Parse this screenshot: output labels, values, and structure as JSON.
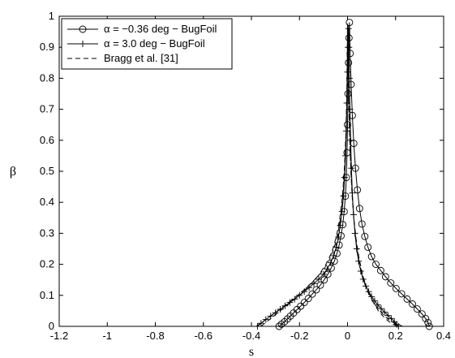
{
  "chart_data": {
    "type": "line",
    "xlabel": "s",
    "ylabel": "β",
    "xlim": [
      -1.2,
      0.4
    ],
    "ylim": [
      0,
      1
    ],
    "xticks": [
      "-1.2",
      "-1",
      "-0.8",
      "-0.6",
      "-0.4",
      "-0.2",
      "0",
      "0.2",
      "0.4"
    ],
    "yticks": [
      "0",
      "0.1",
      "0.2",
      "0.3",
      "0.4",
      "0.5",
      "0.6",
      "0.7",
      "0.8",
      "0.9",
      "1"
    ],
    "grid": false,
    "legend": "top-left",
    "series": [
      {
        "name": "α = −0.36 deg − BugFoil",
        "marker": "circle",
        "line": "solid",
        "color": "#000000",
        "x": [
          -0.285,
          -0.275,
          -0.262,
          -0.25,
          -0.238,
          -0.225,
          -0.21,
          -0.195,
          -0.18,
          -0.163,
          -0.147,
          -0.13,
          -0.113,
          -0.097,
          -0.082,
          -0.068,
          -0.055,
          -0.044,
          -0.035,
          -0.027,
          -0.02,
          -0.014,
          -0.009,
          -0.005,
          -0.002,
          0.0,
          0.002,
          0.004,
          0.006,
          0.008,
          0.011,
          0.015,
          0.02,
          0.026,
          0.033,
          0.041,
          0.05,
          0.06,
          0.072,
          0.085,
          0.1,
          0.118,
          0.138,
          0.158,
          0.18,
          0.202,
          0.225,
          0.248,
          0.27,
          0.29,
          0.31,
          0.325,
          0.335,
          0.34
        ],
        "y": [
          0.0,
          0.007,
          0.015,
          0.024,
          0.033,
          0.043,
          0.054,
          0.065,
          0.077,
          0.09,
          0.104,
          0.118,
          0.133,
          0.15,
          0.168,
          0.188,
          0.21,
          0.235,
          0.262,
          0.292,
          0.328,
          0.37,
          0.42,
          0.48,
          0.56,
          0.65,
          0.75,
          0.85,
          0.93,
          0.98,
          0.88,
          0.78,
          0.68,
          0.59,
          0.51,
          0.44,
          0.38,
          0.33,
          0.29,
          0.255,
          0.225,
          0.2,
          0.18,
          0.16,
          0.14,
          0.122,
          0.105,
          0.088,
          0.072,
          0.056,
          0.04,
          0.025,
          0.012,
          0.0
        ]
      },
      {
        "name": "α = 3.0 deg − BugFoil",
        "marker": "plus",
        "line": "solid",
        "color": "#000000",
        "x": [
          -0.375,
          -0.36,
          -0.34,
          -0.32,
          -0.3,
          -0.28,
          -0.26,
          -0.24,
          -0.22,
          -0.2,
          -0.18,
          -0.16,
          -0.14,
          -0.12,
          -0.1,
          -0.085,
          -0.07,
          -0.058,
          -0.047,
          -0.038,
          -0.03,
          -0.023,
          -0.017,
          -0.012,
          -0.008,
          -0.005,
          -0.003,
          0.0,
          0.002,
          0.004,
          0.006,
          0.008,
          0.01,
          0.013,
          0.016,
          0.02,
          0.025,
          0.031,
          0.038,
          0.046,
          0.055,
          0.065,
          0.076,
          0.088,
          0.1,
          0.113,
          0.126,
          0.14,
          0.154,
          0.168,
          0.182,
          0.195,
          0.205,
          0.212
        ],
        "y": [
          0.0,
          0.01,
          0.022,
          0.033,
          0.044,
          0.055,
          0.066,
          0.077,
          0.088,
          0.1,
          0.112,
          0.125,
          0.138,
          0.152,
          0.168,
          0.185,
          0.205,
          0.228,
          0.255,
          0.288,
          0.326,
          0.37,
          0.42,
          0.48,
          0.55,
          0.63,
          0.72,
          0.82,
          0.9,
          0.96,
          0.9,
          0.8,
          0.7,
          0.6,
          0.51,
          0.43,
          0.36,
          0.3,
          0.25,
          0.21,
          0.178,
          0.152,
          0.13,
          0.112,
          0.096,
          0.082,
          0.069,
          0.057,
          0.046,
          0.035,
          0.025,
          0.015,
          0.006,
          0.0
        ]
      },
      {
        "name": "Bragg et al. [31]",
        "marker": "none",
        "line": "dashed",
        "color": "#000000",
        "x": [
          -0.38,
          -0.34,
          -0.3,
          -0.26,
          -0.22,
          -0.18,
          -0.14,
          -0.1,
          -0.075,
          -0.055,
          -0.04,
          -0.028,
          -0.019,
          -0.012,
          -0.007,
          -0.003,
          -0.001,
          0.0,
          0.002,
          0.005,
          0.009,
          0.014,
          0.02,
          0.028,
          0.038,
          0.05,
          0.065,
          0.085,
          0.11,
          0.14,
          0.17,
          0.2,
          0.23
        ],
        "y": [
          0.0,
          0.022,
          0.045,
          0.068,
          0.092,
          0.118,
          0.148,
          0.182,
          0.215,
          0.255,
          0.3,
          0.355,
          0.42,
          0.5,
          0.6,
          0.72,
          0.85,
          0.98,
          0.86,
          0.73,
          0.61,
          0.5,
          0.41,
          0.33,
          0.26,
          0.2,
          0.15,
          0.11,
          0.075,
          0.045,
          0.022,
          0.008,
          0.0
        ]
      },
      {
        "name": "",
        "marker": "none",
        "line": "dashed",
        "color": "#000000",
        "x": [
          -0.36,
          -0.32,
          -0.28,
          -0.24,
          -0.2,
          -0.16,
          -0.12,
          -0.09,
          -0.065,
          -0.046,
          -0.032,
          -0.021,
          -0.013,
          -0.007,
          -0.003,
          0.0,
          0.003,
          0.007,
          0.012,
          0.018,
          0.026,
          0.036,
          0.048,
          0.063,
          0.082,
          0.105,
          0.13,
          0.158,
          0.185,
          0.21
        ],
        "y": [
          0.0,
          0.025,
          0.05,
          0.075,
          0.1,
          0.13,
          0.165,
          0.2,
          0.24,
          0.29,
          0.35,
          0.42,
          0.51,
          0.62,
          0.76,
          0.97,
          0.8,
          0.66,
          0.54,
          0.44,
          0.35,
          0.28,
          0.22,
          0.165,
          0.12,
          0.08,
          0.048,
          0.024,
          0.008,
          0.0
        ]
      }
    ],
    "legend_entries": [
      {
        "label": "α = −0.36 deg − BugFoil",
        "marker": "circle",
        "line": "solid"
      },
      {
        "label": "α = 3.0 deg − BugFoil",
        "marker": "plus",
        "line": "solid"
      },
      {
        "label": "Bragg et al. [31]",
        "marker": "none",
        "line": "dashed"
      }
    ]
  }
}
